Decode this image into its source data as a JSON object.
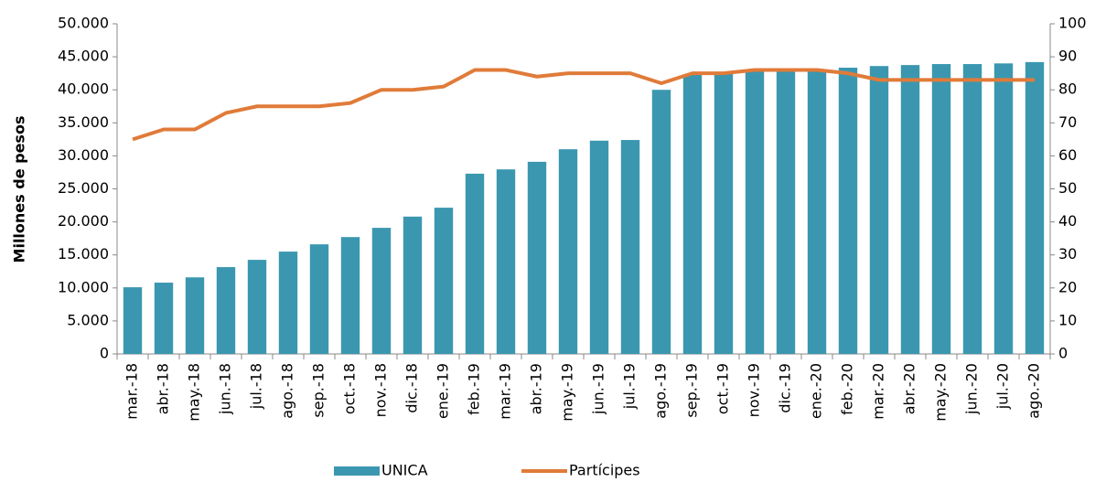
{
  "chart_data": {
    "type": "bar_line",
    "y_label": "Millones de pesos",
    "categories": [
      "mar.-18",
      "abr.-18",
      "may.-18",
      "jun.-18",
      "jul.-18",
      "ago.-18",
      "sep.-18",
      "oct.-18",
      "nov.-18",
      "dic.-18",
      "ene.-19",
      "feb.-19",
      "mar.-19",
      "abr.-19",
      "may.-19",
      "jun.-19",
      "jul.-19",
      "ago.-19",
      "sep.-19",
      "oct.-19",
      "nov.-19",
      "dic.-19",
      "ene.-20",
      "feb.-20",
      "mar.-20",
      "abr.-20",
      "may.-20",
      "jun.-20",
      "jul.-20",
      "ago.-20"
    ],
    "series": [
      {
        "name": "UNICA",
        "type": "bar",
        "axis": "y",
        "color": "#3b97b0",
        "values": [
          10100,
          10800,
          11600,
          13150,
          14250,
          15500,
          16600,
          17700,
          19100,
          20800,
          22150,
          27300,
          27950,
          29100,
          31000,
          32300,
          32400,
          40000,
          42250,
          42400,
          42800,
          42950,
          43100,
          43350,
          43600,
          43750,
          43900,
          43900,
          44000,
          44200
        ]
      },
      {
        "name": "Partícipes",
        "type": "line",
        "axis": "y2",
        "color": "#e07b39",
        "values": [
          65,
          68,
          68,
          73,
          75,
          75,
          75,
          76,
          80,
          80,
          81,
          86,
          86,
          84,
          85,
          85,
          85,
          82,
          85,
          85,
          86,
          86,
          86,
          85,
          83,
          83,
          83,
          83,
          83,
          83
        ]
      }
    ],
    "ylim": [
      0,
      50000
    ],
    "yticks": [
      {
        "value": 0,
        "label": "0"
      },
      {
        "value": 5000,
        "label": "5.000"
      },
      {
        "value": 10000,
        "label": "10.000"
      },
      {
        "value": 15000,
        "label": "15.000"
      },
      {
        "value": 20000,
        "label": "20.000"
      },
      {
        "value": 25000,
        "label": "25.000"
      },
      {
        "value": 30000,
        "label": "30.000"
      },
      {
        "value": 35000,
        "label": "35.000"
      },
      {
        "value": 40000,
        "label": "40.000"
      },
      {
        "value": 45000,
        "label": "45.000"
      },
      {
        "value": 50000,
        "label": "50.000"
      }
    ],
    "y2lim": [
      0,
      100
    ],
    "y2ticks": [
      0,
      10,
      20,
      30,
      40,
      50,
      60,
      70,
      80,
      90,
      100
    ],
    "legend": "bottom"
  }
}
